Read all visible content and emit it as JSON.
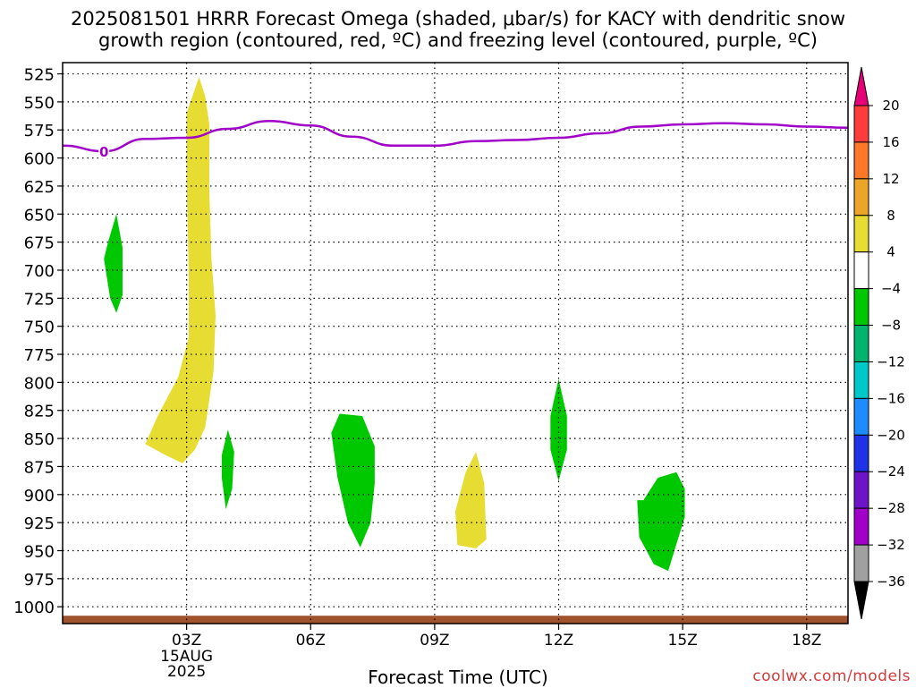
{
  "title_line1": "2025081501 HRRR Forecast Omega (shaded, μbar/s) for KACY with dendritic snow",
  "title_line2": "growth region (contoured, red, ºC) and freezing level (contoured, purple, ºC)",
  "credit": "coolwx.com/models",
  "chart_data": {
    "type": "time-height cross section",
    "title": "2025081501 HRRR Forecast Omega (shaded, μbar/s) for KACY with dendritic snow growth region (contoured, red, ºC) and freezing level (contoured, purple, ºC)",
    "xlabel": "Forecast Time (UTC)",
    "ylabel": "",
    "x_ticks": [
      {
        "hour": 3,
        "label": "03Z",
        "date_line1": "15AUG",
        "date_line2": "2025"
      },
      {
        "hour": 6,
        "label": "06Z"
      },
      {
        "hour": 9,
        "label": "09Z"
      },
      {
        "hour": 12,
        "label": "12Z"
      },
      {
        "hour": 15,
        "label": "15Z"
      },
      {
        "hour": 18,
        "label": "18Z"
      }
    ],
    "xlim": [
      0,
      19
    ],
    "y_ticks": [
      525,
      550,
      575,
      600,
      625,
      650,
      675,
      700,
      725,
      750,
      775,
      800,
      825,
      850,
      875,
      900,
      925,
      950,
      975,
      1000
    ],
    "ylim_hPa": [
      515,
      1015
    ],
    "grid": true,
    "freezing_level": {
      "color": "#a000c8",
      "label": "0",
      "points": [
        [
          0,
          589
        ],
        [
          1,
          594
        ],
        [
          2,
          583
        ],
        [
          3,
          582
        ],
        [
          4,
          574
        ],
        [
          5,
          567
        ],
        [
          6,
          571
        ],
        [
          7,
          581
        ],
        [
          8,
          589
        ],
        [
          9,
          589
        ],
        [
          10,
          585
        ],
        [
          11,
          584
        ],
        [
          12,
          582
        ],
        [
          13,
          578
        ],
        [
          14,
          572
        ],
        [
          15,
          570
        ],
        [
          16,
          569
        ],
        [
          17,
          570
        ],
        [
          18,
          572
        ],
        [
          19,
          573
        ]
      ]
    },
    "omega_regions": [
      {
        "level": "4 to 8",
        "color": "#e6dc32",
        "outline": [
          [
            2.0,
            855
          ],
          [
            2.5,
            865
          ],
          [
            2.9,
            872
          ],
          [
            3.2,
            860
          ],
          [
            3.45,
            840
          ],
          [
            3.65,
            790
          ],
          [
            3.7,
            740
          ],
          [
            3.6,
            690
          ],
          [
            3.55,
            630
          ],
          [
            3.55,
            570
          ],
          [
            3.45,
            545
          ],
          [
            3.3,
            528
          ],
          [
            3.0,
            560
          ],
          [
            3.0,
            620
          ],
          [
            3.05,
            700
          ],
          [
            3.05,
            760
          ],
          [
            2.8,
            795
          ],
          [
            2.3,
            830
          ]
        ]
      },
      {
        "level": "4 to 8",
        "color": "#e6dc32",
        "outline": [
          [
            9.55,
            945
          ],
          [
            10.0,
            948
          ],
          [
            10.25,
            940
          ],
          [
            10.2,
            890
          ],
          [
            10.0,
            862
          ],
          [
            9.75,
            880
          ],
          [
            9.5,
            915
          ]
        ]
      },
      {
        "level": "-8 to -4",
        "color": "#00c800",
        "outline": [
          [
            1.0,
            690
          ],
          [
            1.15,
            725
          ],
          [
            1.3,
            738
          ],
          [
            1.45,
            722
          ],
          [
            1.45,
            680
          ],
          [
            1.3,
            650
          ],
          [
            1.1,
            675
          ]
        ]
      },
      {
        "level": "-8 to -4",
        "color": "#00c800",
        "outline": [
          [
            3.85,
            885
          ],
          [
            3.95,
            913
          ],
          [
            4.1,
            895
          ],
          [
            4.15,
            862
          ],
          [
            4.0,
            842
          ],
          [
            3.85,
            865
          ]
        ]
      },
      {
        "level": "-8 to -4",
        "color": "#00c800",
        "outline": [
          [
            6.5,
            845
          ],
          [
            6.65,
            885
          ],
          [
            6.9,
            925
          ],
          [
            7.2,
            947
          ],
          [
            7.45,
            925
          ],
          [
            7.55,
            890
          ],
          [
            7.55,
            857
          ],
          [
            7.25,
            830
          ],
          [
            6.7,
            828
          ]
        ]
      },
      {
        "level": "-8 to -4",
        "color": "#00c800",
        "outline": [
          [
            11.8,
            860
          ],
          [
            12.0,
            888
          ],
          [
            12.2,
            860
          ],
          [
            12.2,
            830
          ],
          [
            12.0,
            797
          ],
          [
            11.8,
            830
          ]
        ]
      },
      {
        "level": "-8 to -4",
        "color": "#00c800",
        "outline": [
          [
            13.9,
            905
          ],
          [
            13.95,
            938
          ],
          [
            14.3,
            962
          ],
          [
            14.65,
            968
          ],
          [
            14.8,
            950
          ],
          [
            15.05,
            920
          ],
          [
            15.05,
            895
          ],
          [
            14.85,
            880
          ],
          [
            14.4,
            885
          ],
          [
            14.05,
            905
          ]
        ]
      }
    ],
    "terrain": {
      "color": "#a0522d",
      "top_hPa": 1008,
      "bottom_hPa": 1015
    },
    "colorbar": {
      "ticks": [
        "20",
        "16",
        "12",
        "8",
        "4",
        "−4",
        "−8",
        "−12",
        "−16",
        "−20",
        "−24",
        "−28",
        "−32",
        "−36"
      ],
      "colors": [
        "#e60078",
        "#ff3c3c",
        "#ff7828",
        "#eba528",
        "#e6dc32",
        "#ffffff",
        "#00c800",
        "#00b46e",
        "#00c8c8",
        "#1e8cff",
        "#1e32e6",
        "#6e14c8",
        "#a000c8",
        "#a0a0a0",
        "#000000"
      ]
    }
  }
}
